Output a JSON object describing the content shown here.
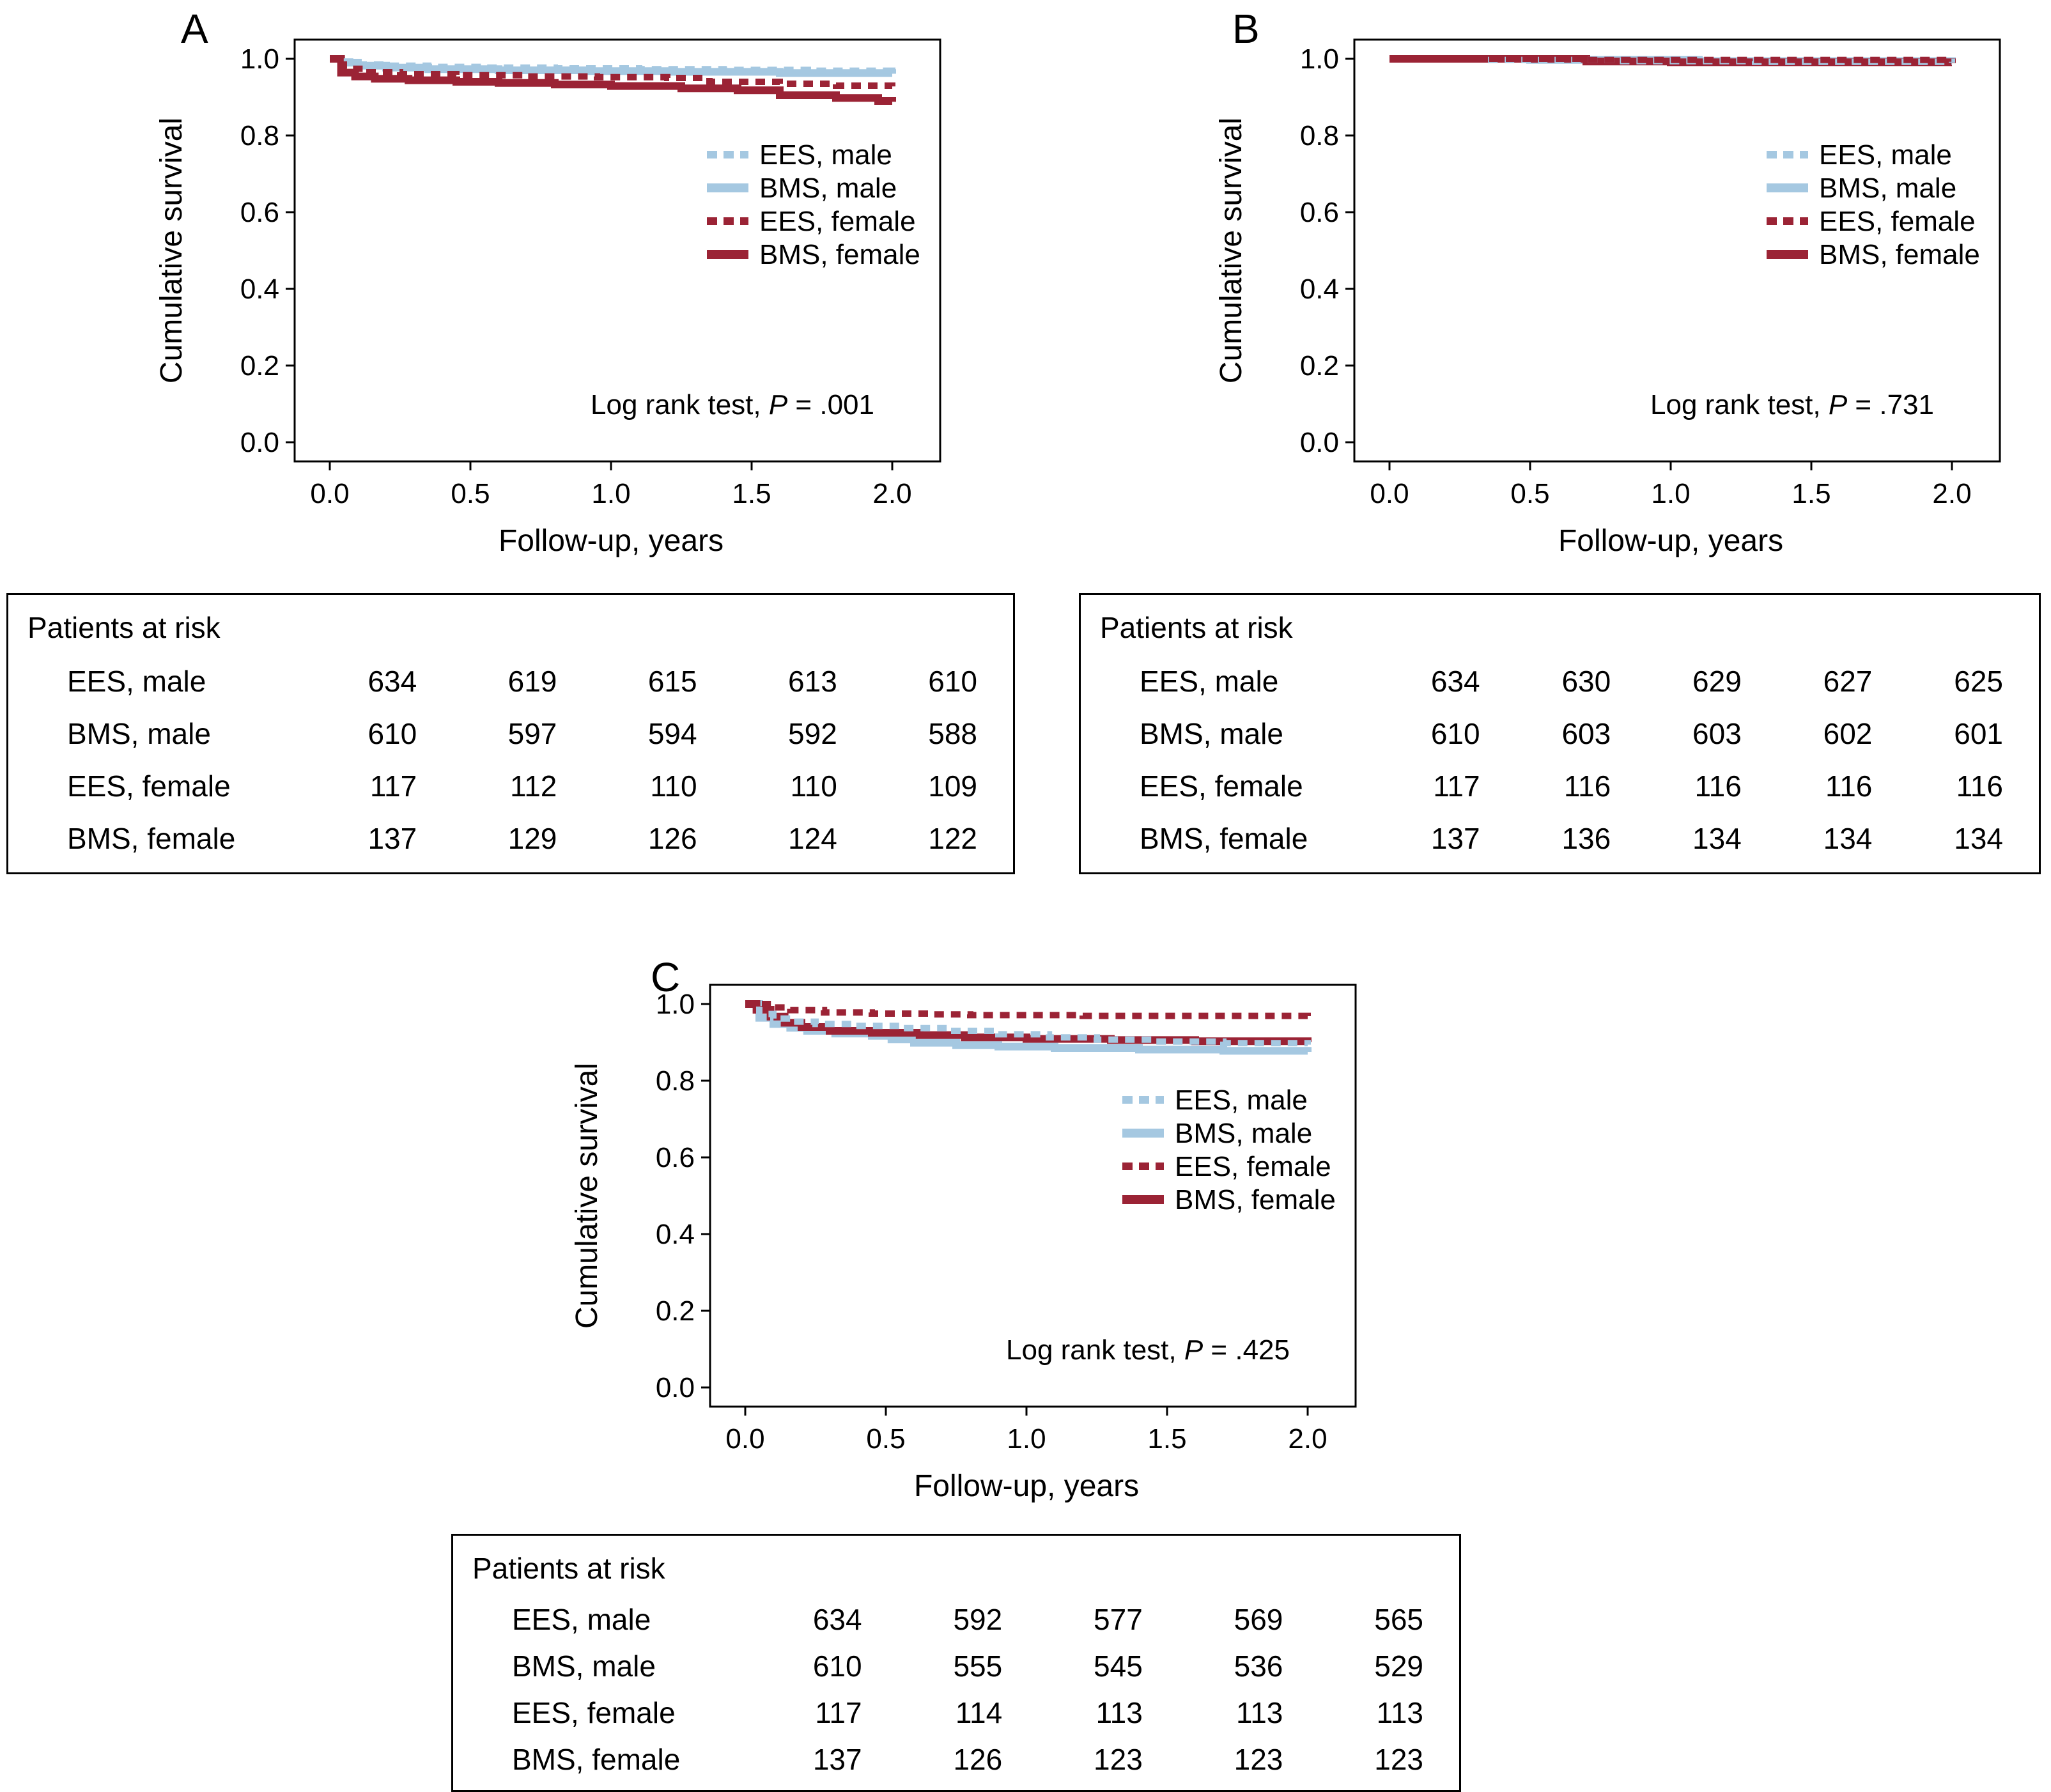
{
  "figure_colors": {
    "light_blue": "#a5c8e1",
    "dark_red": "#9b2335",
    "axis": "#000000"
  },
  "chart_data": [
    {
      "type": "line",
      "panel": "A",
      "xlabel": "Follow-up, years",
      "ylabel": "Cumulative survival",
      "xlim": [
        0,
        2
      ],
      "ylim": [
        0,
        1
      ],
      "xticks": [
        0.0,
        0.5,
        1.0,
        1.5,
        2.0
      ],
      "yticks": [
        1.0,
        0.8,
        0.6,
        0.4,
        0.2,
        0.0
      ],
      "grid": false,
      "legend_position": "right-center-inside",
      "annotation": {
        "before_p": "Log rank test, ",
        "p": "P",
        "after_p": " = .001"
      },
      "series": [
        {
          "name": "EES, male",
          "color": "#a5c8e1",
          "style": "dotted",
          "x": [
            0,
            0.04,
            0.1,
            0.2,
            0.35,
            0.55,
            0.8,
            1.1,
            1.4,
            1.7,
            2.0
          ],
          "y": [
            1.0,
            0.993,
            0.985,
            0.982,
            0.979,
            0.977,
            0.975,
            0.973,
            0.971,
            0.969,
            0.967
          ]
        },
        {
          "name": "BMS, male",
          "color": "#a5c8e1",
          "style": "solid",
          "x": [
            0,
            0.04,
            0.1,
            0.2,
            0.35,
            0.6,
            0.9,
            1.2,
            1.6,
            2.0
          ],
          "y": [
            1.0,
            0.99,
            0.982,
            0.977,
            0.973,
            0.97,
            0.968,
            0.966,
            0.963,
            0.961
          ]
        },
        {
          "name": "EES, female",
          "color": "#9b2335",
          "style": "dotted",
          "x": [
            0,
            0.05,
            0.12,
            0.25,
            0.45,
            0.7,
            0.95,
            1.2,
            1.35,
            1.6,
            1.8,
            2.0
          ],
          "y": [
            1.0,
            0.974,
            0.965,
            0.96,
            0.957,
            0.954,
            0.952,
            0.95,
            0.94,
            0.935,
            0.93,
            0.928
          ]
        },
        {
          "name": "BMS, female",
          "color": "#9b2335",
          "style": "solid",
          "x": [
            0,
            0.04,
            0.09,
            0.16,
            0.28,
            0.45,
            0.6,
            0.8,
            1.0,
            1.25,
            1.45,
            1.6,
            1.8,
            1.95,
            2.0
          ],
          "y": [
            1.0,
            0.964,
            0.954,
            0.948,
            0.944,
            0.94,
            0.937,
            0.933,
            0.929,
            0.923,
            0.918,
            0.905,
            0.898,
            0.89,
            0.888
          ]
        }
      ],
      "risk_table": {
        "title": "Patients at risk",
        "rows": [
          {
            "label": "EES, male",
            "values": [
              634,
              619,
              615,
              613,
              610
            ]
          },
          {
            "label": "BMS, male",
            "values": [
              610,
              597,
              594,
              592,
              588
            ]
          },
          {
            "label": "EES, female",
            "values": [
              117,
              112,
              110,
              110,
              109
            ]
          },
          {
            "label": "BMS, female",
            "values": [
              137,
              129,
              126,
              124,
              122
            ]
          }
        ]
      }
    },
    {
      "type": "line",
      "panel": "B",
      "xlabel": "Follow-up, years",
      "ylabel": "Cumulative survival",
      "xlim": [
        0,
        2
      ],
      "ylim": [
        0,
        1
      ],
      "xticks": [
        0.0,
        0.5,
        1.0,
        1.5,
        2.0
      ],
      "yticks": [
        1.0,
        0.8,
        0.6,
        0.4,
        0.2,
        0.0
      ],
      "grid": false,
      "legend_position": "right-center-inside",
      "annotation": {
        "before_p": "Log rank test, ",
        "p": "P",
        "after_p": " = .731"
      },
      "series": [
        {
          "name": "EES, male",
          "color": "#a5c8e1",
          "style": "dotted",
          "x": [
            0,
            0.35,
            0.8,
            1.3,
            2.0
          ],
          "y": [
            1.0,
            0.997,
            0.994,
            0.992,
            0.99
          ]
        },
        {
          "name": "BMS, male",
          "color": "#a5c8e1",
          "style": "solid",
          "x": [
            0,
            0.5,
            1.1,
            2.0
          ],
          "y": [
            1.0,
            0.997,
            0.994,
            0.992
          ]
        },
        {
          "name": "EES, female",
          "color": "#9b2335",
          "style": "dotted",
          "x": [
            0,
            0.7,
            2.0
          ],
          "y": [
            1.0,
            0.997,
            0.995
          ]
        },
        {
          "name": "BMS, female",
          "color": "#9b2335",
          "style": "solid",
          "x": [
            0,
            0.7,
            1.0,
            2.0
          ],
          "y": [
            1.0,
            0.993,
            0.991,
            0.989
          ]
        }
      ],
      "risk_table": {
        "title": "Patients at risk",
        "rows": [
          {
            "label": "EES, male",
            "values": [
              634,
              630,
              629,
              627,
              625
            ]
          },
          {
            "label": "BMS, male",
            "values": [
              610,
              603,
              603,
              602,
              601
            ]
          },
          {
            "label": "EES, female",
            "values": [
              117,
              116,
              116,
              116,
              116
            ]
          },
          {
            "label": "BMS, female",
            "values": [
              137,
              136,
              134,
              134,
              134
            ]
          }
        ]
      }
    },
    {
      "type": "line",
      "panel": "C",
      "xlabel": "Follow-up, years",
      "ylabel": "Cumulative survival",
      "xlim": [
        0,
        2
      ],
      "ylim": [
        0,
        1
      ],
      "xticks": [
        0.0,
        0.5,
        1.0,
        1.5,
        2.0
      ],
      "yticks": [
        1.0,
        0.8,
        0.6,
        0.4,
        0.2,
        0.0
      ],
      "grid": false,
      "legend_position": "right-center-inside",
      "annotation": {
        "before_p": "Log rank test, ",
        "p": "P",
        "after_p": " = .425"
      },
      "series": [
        {
          "name": "EES, male",
          "color": "#a5c8e1",
          "style": "dotted",
          "x": [
            0,
            0.05,
            0.1,
            0.17,
            0.25,
            0.38,
            0.55,
            0.72,
            0.9,
            1.08,
            1.25,
            1.45,
            1.7,
            2.0
          ],
          "y": [
            1.0,
            0.974,
            0.962,
            0.954,
            0.948,
            0.943,
            0.937,
            0.93,
            0.921,
            0.913,
            0.907,
            0.902,
            0.898,
            0.894
          ]
        },
        {
          "name": "BMS, male",
          "color": "#a5c8e1",
          "style": "solid",
          "x": [
            0,
            0.05,
            0.1,
            0.16,
            0.22,
            0.32,
            0.45,
            0.52,
            0.6,
            0.75,
            0.9,
            1.1,
            1.4,
            1.7,
            2.0
          ],
          "y": [
            1.0,
            0.964,
            0.948,
            0.938,
            0.93,
            0.923,
            0.917,
            0.908,
            0.899,
            0.893,
            0.889,
            0.885,
            0.881,
            0.878,
            0.875
          ]
        },
        {
          "name": "EES, female",
          "color": "#9b2335",
          "style": "dotted",
          "x": [
            0,
            0.08,
            0.16,
            0.28,
            0.45,
            0.65,
            0.8,
            1.2,
            2.0
          ],
          "y": [
            1.0,
            0.991,
            0.984,
            0.978,
            0.975,
            0.973,
            0.971,
            0.969,
            0.967
          ]
        },
        {
          "name": "BMS, female",
          "color": "#9b2335",
          "style": "solid",
          "x": [
            0,
            0.04,
            0.09,
            0.14,
            0.2,
            0.3,
            0.45,
            0.62,
            0.78,
            1.0,
            1.3,
            1.6,
            2.0
          ],
          "y": [
            1.0,
            0.985,
            0.967,
            0.951,
            0.94,
            0.93,
            0.925,
            0.919,
            0.913,
            0.909,
            0.906,
            0.903,
            0.901
          ]
        }
      ],
      "risk_table": {
        "title": "Patients at risk",
        "rows": [
          {
            "label": "EES, male",
            "values": [
              634,
              592,
              577,
              569,
              565
            ]
          },
          {
            "label": "BMS, male",
            "values": [
              610,
              555,
              545,
              536,
              529
            ]
          },
          {
            "label": "EES, female",
            "values": [
              117,
              114,
              113,
              113,
              113
            ]
          },
          {
            "label": "BMS, female",
            "values": [
              137,
              126,
              123,
              123,
              123
            ]
          }
        ]
      }
    }
  ]
}
